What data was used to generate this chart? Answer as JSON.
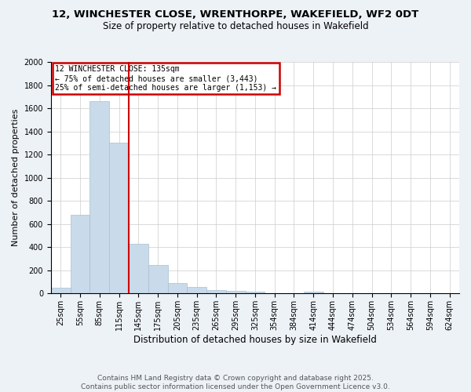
{
  "title_line1": "12, WINCHESTER CLOSE, WRENTHORPE, WAKEFIELD, WF2 0DT",
  "title_line2": "Size of property relative to detached houses in Wakefield",
  "xlabel": "Distribution of detached houses by size in Wakefield",
  "ylabel": "Number of detached properties",
  "bar_labels": [
    "25sqm",
    "55sqm",
    "85sqm",
    "115sqm",
    "145sqm",
    "175sqm",
    "205sqm",
    "235sqm",
    "265sqm",
    "295sqm",
    "325sqm",
    "354sqm",
    "384sqm",
    "414sqm",
    "444sqm",
    "474sqm",
    "504sqm",
    "534sqm",
    "564sqm",
    "594sqm",
    "624sqm"
  ],
  "bar_values": [
    50,
    680,
    1660,
    1300,
    430,
    250,
    90,
    55,
    30,
    20,
    15,
    0,
    0,
    15,
    0,
    0,
    0,
    0,
    0,
    0,
    0
  ],
  "bar_color": "#c9daea",
  "bar_edgecolor": "#a8c0d0",
  "ylim_max": 2000,
  "yticks": [
    0,
    200,
    400,
    600,
    800,
    1000,
    1200,
    1400,
    1600,
    1800,
    2000
  ],
  "vline_pos": 3.5,
  "vline_color": "#cc0000",
  "annotation_title": "12 WINCHESTER CLOSE: 135sqm",
  "annotation_line1": "← 75% of detached houses are smaller (3,443)",
  "annotation_line2": "25% of semi-detached houses are larger (1,153) →",
  "annotation_edgecolor": "#cc0000",
  "footnote1": "Contains HM Land Registry data © Crown copyright and database right 2025.",
  "footnote2": "Contains public sector information licensed under the Open Government Licence v3.0.",
  "bg_color": "#edf2f7",
  "plot_bg_color": "#ffffff",
  "title1_fontsize": 9.5,
  "title2_fontsize": 8.5,
  "ylabel_fontsize": 8,
  "xlabel_fontsize": 8.5,
  "tick_fontsize": 7,
  "annot_fontsize": 7,
  "footnote_fontsize": 6.5
}
